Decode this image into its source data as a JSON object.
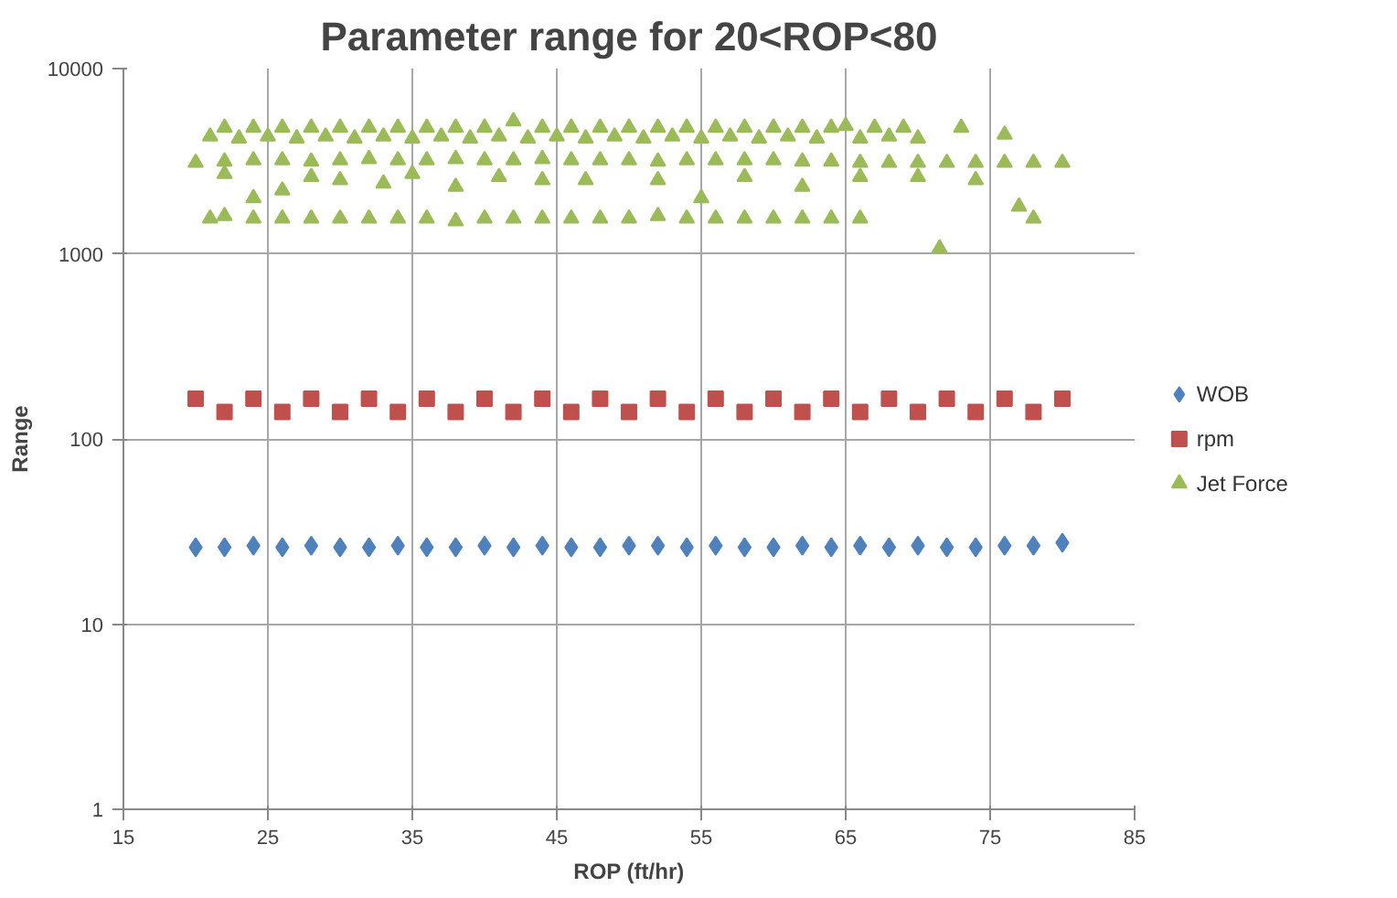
{
  "chart_data": {
    "type": "scatter",
    "title": "Parameter range for 20<ROP<80",
    "xlabel": "ROP (ft/hr)",
    "ylabel": "Range",
    "log": "y",
    "grid": true,
    "legend": "right",
    "xlim": [
      15,
      85
    ],
    "xticks": [
      15,
      25,
      35,
      45,
      55,
      65,
      75,
      85
    ],
    "ylim": [
      1,
      10000
    ],
    "yticks": [
      1,
      10,
      100,
      1000,
      10000
    ],
    "series": [
      {
        "name": "WOB",
        "color": "#4f81bd",
        "marker": "diamond",
        "x": [
          20,
          22,
          24,
          26,
          28,
          30,
          32,
          34,
          36,
          38,
          40,
          42,
          44,
          46,
          48,
          50,
          52,
          54,
          56,
          58,
          60,
          62,
          64,
          66,
          68,
          70,
          72,
          74,
          76,
          78,
          80
        ],
        "values": [
          26,
          26,
          26.5,
          26,
          26.5,
          26,
          26,
          26.5,
          26,
          26,
          26.5,
          26,
          26.5,
          26,
          26,
          26.5,
          26.5,
          26,
          26.5,
          26,
          26,
          26.5,
          26,
          26.5,
          26,
          26.5,
          26,
          26,
          26.5,
          26.5,
          27.5
        ]
      },
      {
        "name": "rpm",
        "color": "#c0504d",
        "marker": "square",
        "x": [
          20,
          22,
          24,
          26,
          28,
          30,
          32,
          34,
          36,
          38,
          40,
          42,
          44,
          46,
          48,
          50,
          52,
          54,
          56,
          58,
          60,
          62,
          64,
          66,
          68,
          70,
          72,
          74,
          76,
          78,
          80
        ],
        "values": [
          165,
          140,
          165,
          140,
          165,
          140,
          165,
          140,
          165,
          140,
          165,
          140,
          165,
          140,
          165,
          140,
          165,
          140,
          165,
          140,
          165,
          140,
          165,
          140,
          165,
          140,
          165,
          140,
          165,
          140,
          165
        ]
      },
      {
        "name": "Jet Force",
        "color": "#9bbb59",
        "marker": "triangle",
        "x": [
          20,
          22,
          24,
          26,
          28,
          30,
          32,
          34,
          36,
          38,
          40,
          42,
          44,
          46,
          48,
          50,
          52,
          54,
          56,
          58,
          60,
          62,
          64,
          66,
          68,
          70,
          72,
          74,
          76,
          78,
          80,
          21,
          22,
          23,
          24,
          25,
          26,
          27,
          28,
          29,
          30,
          31,
          32,
          33,
          34,
          35,
          36,
          37,
          38,
          39,
          40,
          41,
          42,
          43,
          44,
          45,
          46,
          47,
          48,
          49,
          50,
          51,
          52,
          53,
          54,
          55,
          56,
          57,
          58,
          59,
          60,
          61,
          62,
          63,
          64,
          65,
          66,
          67,
          68,
          69,
          70,
          73,
          76,
          22,
          24,
          26,
          28,
          30,
          33,
          35,
          38,
          41,
          44,
          47,
          52,
          55,
          58,
          62,
          66,
          70,
          74,
          77,
          21,
          22,
          24,
          26,
          28,
          30,
          32,
          34,
          36,
          38,
          40,
          42,
          44,
          46,
          48,
          50,
          52,
          54,
          56,
          58,
          60,
          62,
          64,
          66,
          71.5,
          78
        ],
        "values": [
          3100,
          3150,
          3200,
          3200,
          3150,
          3200,
          3250,
          3200,
          3200,
          3250,
          3200,
          3200,
          3250,
          3200,
          3200,
          3200,
          3150,
          3200,
          3200,
          3200,
          3200,
          3150,
          3150,
          3100,
          3100,
          3100,
          3100,
          3100,
          3100,
          3100,
          3100,
          4300,
          4800,
          4200,
          4800,
          4300,
          4800,
          4200,
          4800,
          4300,
          4800,
          4200,
          4800,
          4300,
          4800,
          4200,
          4800,
          4300,
          4800,
          4200,
          4800,
          4300,
          5200,
          4200,
          4800,
          4300,
          4800,
          4200,
          4800,
          4300,
          4800,
          4200,
          4800,
          4300,
          4800,
          4200,
          4800,
          4300,
          4800,
          4200,
          4800,
          4300,
          4800,
          4200,
          4800,
          4900,
          4200,
          4800,
          4300,
          4800,
          4200,
          4800,
          4400,
          2700,
          2000,
          2200,
          2600,
          2500,
          2400,
          2700,
          2300,
          2600,
          2500,
          2500,
          2500,
          2000,
          2600,
          2300,
          2600,
          2600,
          2500,
          1800,
          1550,
          1600,
          1550,
          1550,
          1550,
          1550,
          1550,
          1550,
          1550,
          1500,
          1550,
          1550,
          1550,
          1550,
          1550,
          1550,
          1600,
          1550,
          1550,
          1550,
          1550,
          1550,
          1550,
          1550,
          1070,
          1550
        ]
      }
    ]
  }
}
